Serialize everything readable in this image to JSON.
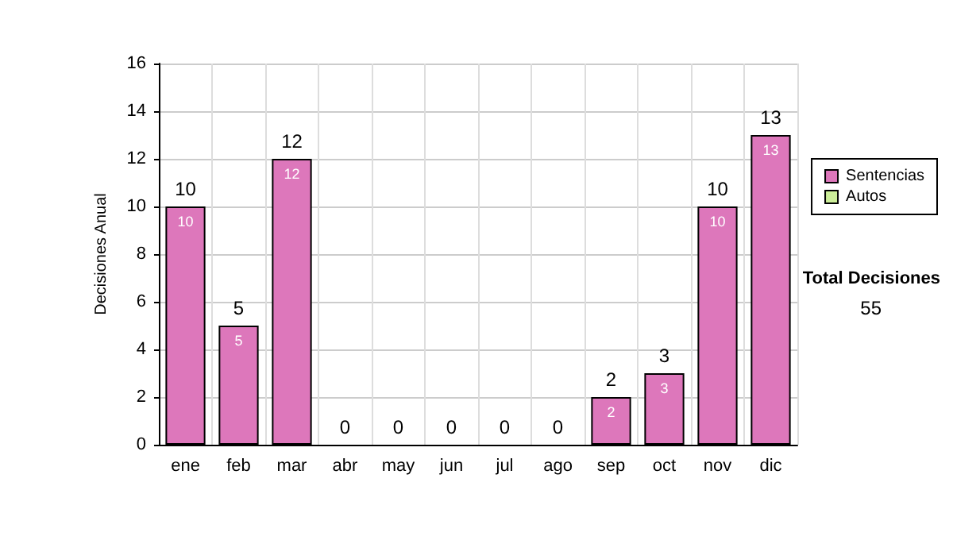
{
  "chart_data": {
    "type": "bar",
    "stacked": true,
    "ylabel": "Decisiones Anual",
    "categories": [
      "ene",
      "feb",
      "mar",
      "abr",
      "may",
      "jun",
      "jul",
      "ago",
      "sep",
      "oct",
      "nov",
      "dic"
    ],
    "series": [
      {
        "name": "Sentencias",
        "color": "#dd77bb",
        "values": [
          10,
          5,
          12,
          0,
          0,
          0,
          0,
          0,
          2,
          3,
          10,
          13
        ],
        "value_labels": [
          "10",
          "5",
          "12",
          null,
          null,
          null,
          null,
          null,
          "2",
          "3",
          "10",
          "13"
        ]
      },
      {
        "name": "Autos",
        "color": "#ccee99",
        "values": [
          0,
          0,
          0,
          0,
          0,
          0,
          0,
          0,
          0,
          0,
          0,
          0
        ]
      }
    ],
    "totals": [
      "10",
      "5",
      "12",
      "0",
      "0",
      "0",
      "0",
      "0",
      "2",
      "3",
      "10",
      "13"
    ],
    "ylim": [
      0,
      16
    ],
    "yticks": [
      0,
      2,
      4,
      6,
      8,
      10,
      12,
      14,
      16
    ],
    "grid": true,
    "legend": "right",
    "annotations": [
      "Total Decisiones",
      "55"
    ]
  }
}
